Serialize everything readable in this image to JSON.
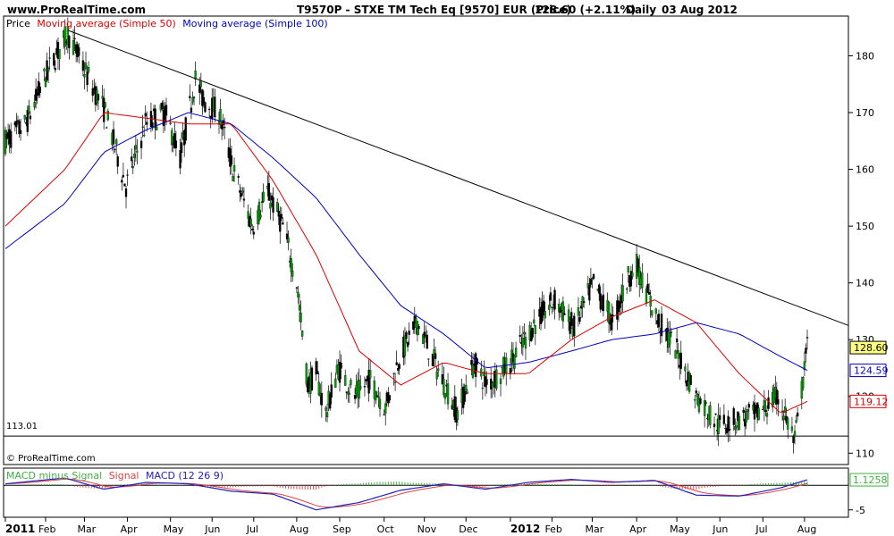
{
  "header": {
    "site": "www.ProRealTime.com",
    "title": "T9570P - STXE TM Tech Eq [9570] EUR (Price)",
    "last_value": "128.60 (+2.11%)",
    "period": "Daily",
    "date": "03 Aug 2012"
  },
  "price_panel": {
    "legend_price": "Price",
    "legend_ma50": "Moving average (Simple 50)",
    "legend_ma100": "Moving average (Simple 100)",
    "support_label": "113.01",
    "copyright": "© ProRealTime.com"
  },
  "macd_panel": {
    "legend_hist": "MACD minus Signal",
    "legend_signal": "Signal",
    "legend_macd": "MACD (12 26 9)"
  },
  "colors": {
    "ma50": "#e00000",
    "ma100": "#0000c8",
    "up_candle": "#00a000",
    "down_candle": "#000000",
    "trendline": "#000000",
    "hist_pos": "#40b040",
    "hist_neg": "#e05050",
    "macd_signal_line": "#e04040",
    "macd_line": "#2020c0",
    "current_badge": "#ffff80"
  },
  "chart_data": [
    {
      "type": "candlestick",
      "name": "Price",
      "x_range": [
        "2011-01-03",
        "2012-08-03"
      ],
      "ylim": [
        108,
        187
      ],
      "yticks": [
        110,
        120,
        130,
        140,
        150,
        160,
        170,
        180
      ],
      "ytick_labels": [
        "110",
        "120",
        "130",
        "140",
        "150",
        "160",
        "170",
        "180"
      ],
      "months": [
        {
          "date": "2011-01-03",
          "label": "2011",
          "year": true
        },
        {
          "date": "2011-02-01",
          "label": "Feb"
        },
        {
          "date": "2011-03-01",
          "label": "Mar"
        },
        {
          "date": "2011-04-01",
          "label": "Apr"
        },
        {
          "date": "2011-05-02",
          "label": "May"
        },
        {
          "date": "2011-06-01",
          "label": "Jun"
        },
        {
          "date": "2011-07-01",
          "label": "Jul"
        },
        {
          "date": "2011-08-01",
          "label": "Aug"
        },
        {
          "date": "2011-09-01",
          "label": "Sep"
        },
        {
          "date": "2011-10-03",
          "label": "Oct"
        },
        {
          "date": "2011-11-01",
          "label": "Nov"
        },
        {
          "date": "2011-12-01",
          "label": "Dec"
        },
        {
          "date": "2012-01-02",
          "label": "2012",
          "year": true
        },
        {
          "date": "2012-02-01",
          "label": "Feb"
        },
        {
          "date": "2012-03-01",
          "label": "Mar"
        },
        {
          "date": "2012-04-02",
          "label": "Apr"
        },
        {
          "date": "2012-05-01",
          "label": "May"
        },
        {
          "date": "2012-06-01",
          "label": "Jun"
        },
        {
          "date": "2012-07-02",
          "label": "Jul"
        },
        {
          "date": "2012-08-01",
          "label": "Aug"
        }
      ],
      "close_path": [
        [
          "2011-01-03",
          165
        ],
        [
          "2011-01-18",
          168
        ],
        [
          "2011-01-31",
          176
        ],
        [
          "2011-02-17",
          184
        ],
        [
          "2011-03-04",
          176
        ],
        [
          "2011-03-16",
          170
        ],
        [
          "2011-03-31",
          157
        ],
        [
          "2011-04-14",
          168
        ],
        [
          "2011-04-28",
          170
        ],
        [
          "2011-05-09",
          162
        ],
        [
          "2011-05-20",
          176
        ],
        [
          "2011-05-26",
          172
        ],
        [
          "2011-06-06",
          170
        ],
        [
          "2011-06-16",
          160
        ],
        [
          "2011-06-30",
          150
        ],
        [
          "2011-07-11",
          156
        ],
        [
          "2011-07-22",
          150
        ],
        [
          "2011-08-01",
          140
        ],
        [
          "2011-08-09",
          122
        ],
        [
          "2011-08-15",
          124
        ],
        [
          "2011-08-22",
          117
        ],
        [
          "2011-08-31",
          125
        ],
        [
          "2011-09-12",
          120
        ],
        [
          "2011-09-23",
          123
        ],
        [
          "2011-10-04",
          118
        ],
        [
          "2011-10-14",
          127
        ],
        [
          "2011-10-27",
          133
        ],
        [
          "2011-11-10",
          125
        ],
        [
          "2011-11-25",
          117
        ],
        [
          "2011-12-07",
          126
        ],
        [
          "2011-12-16",
          122
        ],
        [
          "2012-01-02",
          126
        ],
        [
          "2012-01-20",
          133
        ],
        [
          "2012-02-03",
          137
        ],
        [
          "2012-02-17",
          132
        ],
        [
          "2012-03-02",
          140
        ],
        [
          "2012-03-16",
          133
        ],
        [
          "2012-03-27",
          141
        ],
        [
          "2012-04-02",
          143
        ],
        [
          "2012-04-16",
          134
        ],
        [
          "2012-05-01",
          128
        ],
        [
          "2012-05-15",
          120
        ],
        [
          "2012-05-31",
          115
        ],
        [
          "2012-06-15",
          116
        ],
        [
          "2012-06-29",
          117
        ],
        [
          "2012-07-13",
          120
        ],
        [
          "2012-07-25",
          112
        ],
        [
          "2012-08-03",
          128.6
        ]
      ],
      "ma50": [
        [
          "2011-01-03",
          150
        ],
        [
          "2011-02-15",
          160
        ],
        [
          "2011-03-15",
          170
        ],
        [
          "2011-04-15",
          169
        ],
        [
          "2011-05-15",
          168
        ],
        [
          "2011-06-15",
          168
        ],
        [
          "2011-07-15",
          158
        ],
        [
          "2011-08-15",
          145
        ],
        [
          "2011-09-15",
          128
        ],
        [
          "2011-10-15",
          122
        ],
        [
          "2011-11-15",
          126
        ],
        [
          "2011-12-15",
          124
        ],
        [
          "2012-01-15",
          124
        ],
        [
          "2012-02-15",
          130
        ],
        [
          "2012-03-15",
          134
        ],
        [
          "2012-04-15",
          137
        ],
        [
          "2012-05-15",
          133
        ],
        [
          "2012-06-15",
          124
        ],
        [
          "2012-07-15",
          117
        ],
        [
          "2012-08-03",
          119.12
        ]
      ],
      "ma100": [
        [
          "2011-01-03",
          146
        ],
        [
          "2011-02-15",
          154
        ],
        [
          "2011-03-15",
          163
        ],
        [
          "2011-04-15",
          167
        ],
        [
          "2011-05-15",
          170
        ],
        [
          "2011-06-15",
          168
        ],
        [
          "2011-07-15",
          162
        ],
        [
          "2011-08-15",
          155
        ],
        [
          "2011-09-15",
          145
        ],
        [
          "2011-10-15",
          136
        ],
        [
          "2011-11-15",
          131
        ],
        [
          "2011-12-15",
          125
        ],
        [
          "2012-01-15",
          126
        ],
        [
          "2012-02-15",
          128
        ],
        [
          "2012-03-15",
          130
        ],
        [
          "2012-04-15",
          131
        ],
        [
          "2012-05-15",
          133
        ],
        [
          "2012-06-15",
          131
        ],
        [
          "2012-07-15",
          127
        ],
        [
          "2012-08-03",
          124.59
        ]
      ],
      "trendline": [
        [
          "2011-02-17",
          184.5
        ],
        [
          "2012-08-16",
          132.5
        ]
      ],
      "support_level": 113.01,
      "current_values": {
        "price": 128.6,
        "ma100": 124.59,
        "ma50": 119.12
      }
    },
    {
      "type": "macd",
      "name": "MACD (12 26 9)",
      "ylim": [
        -6.5,
        3.5
      ],
      "yticks": [
        -5
      ],
      "ytick_labels": [
        "-5"
      ],
      "zero_line": 0,
      "current_value": 1.1258,
      "macd_path": [
        [
          "2011-01-03",
          0.3
        ],
        [
          "2011-02-15",
          1.5
        ],
        [
          "2011-03-15",
          -0.8
        ],
        [
          "2011-04-15",
          0.6
        ],
        [
          "2011-05-15",
          0.3
        ],
        [
          "2011-06-15",
          -1.2
        ],
        [
          "2011-07-15",
          -1.8
        ],
        [
          "2011-08-15",
          -5.0
        ],
        [
          "2011-09-15",
          -3.5
        ],
        [
          "2011-10-15",
          -1.0
        ],
        [
          "2011-11-15",
          0.3
        ],
        [
          "2011-12-15",
          -0.8
        ],
        [
          "2012-01-15",
          0.6
        ],
        [
          "2012-02-15",
          1.2
        ],
        [
          "2012-03-15",
          0.6
        ],
        [
          "2012-04-15",
          1.0
        ],
        [
          "2012-05-15",
          -2.0
        ],
        [
          "2012-06-15",
          -2.2
        ],
        [
          "2012-07-15",
          -0.5
        ],
        [
          "2012-08-03",
          1.1258
        ]
      ]
    }
  ]
}
